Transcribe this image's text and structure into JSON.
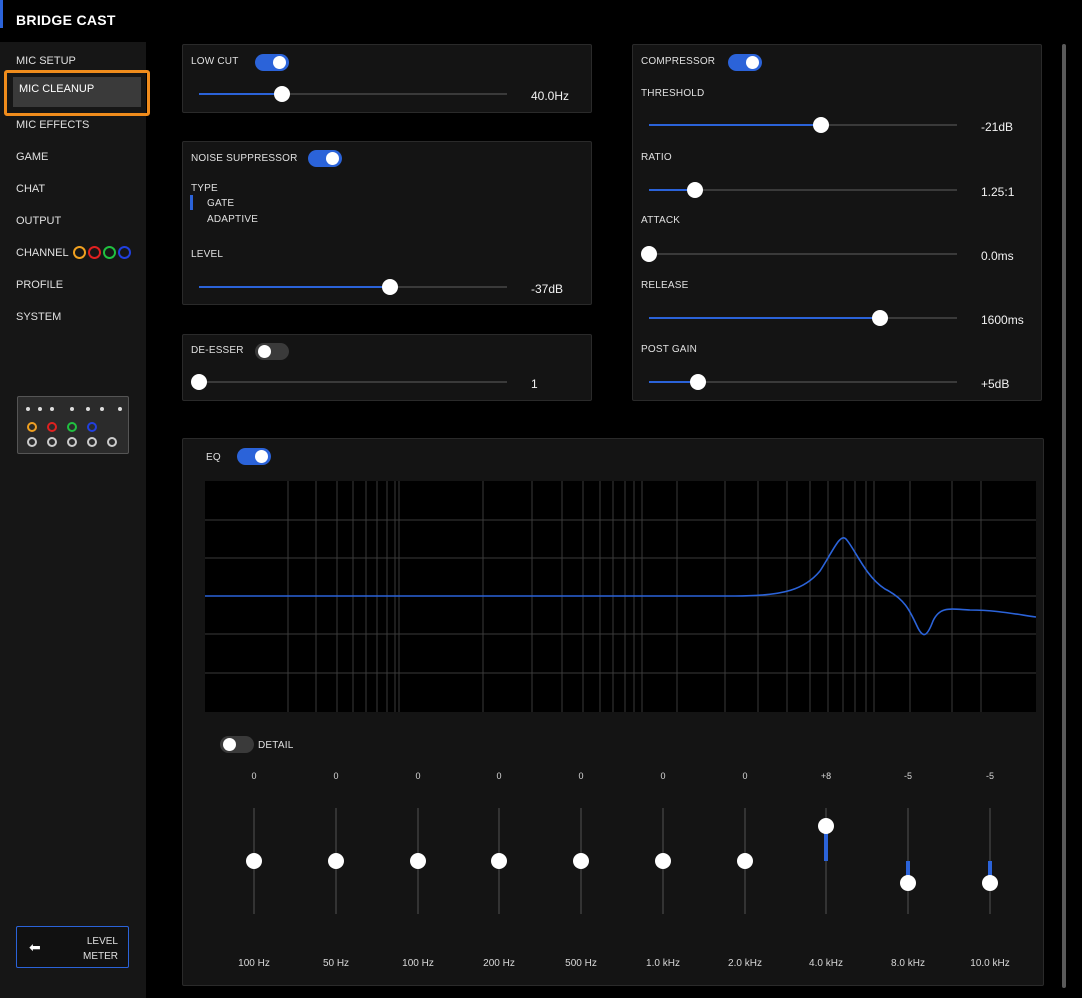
{
  "app": {
    "title": "BRIDGE CAST"
  },
  "sidebar": {
    "items": [
      {
        "id": "mic-setup",
        "label": "MIC SETUP"
      },
      {
        "id": "mic-cleanup",
        "label": "MIC CLEANUP",
        "active": true
      },
      {
        "id": "mic-effects",
        "label": "MIC EFFECTS"
      },
      {
        "id": "game",
        "label": "GAME"
      },
      {
        "id": "chat",
        "label": "CHAT"
      },
      {
        "id": "output",
        "label": "OUTPUT"
      },
      {
        "id": "channel",
        "label": "CHANNEL"
      },
      {
        "id": "profile",
        "label": "PROFILE"
      },
      {
        "id": "system",
        "label": "SYSTEM"
      }
    ],
    "channel_colors": [
      "#f0a020",
      "#e02020",
      "#20c040",
      "#2040e0"
    ],
    "level_meter": {
      "line1": "LEVEL",
      "line2": "METER",
      "icon": "arrow-left-icon"
    }
  },
  "low_cut": {
    "label": "LOW CUT",
    "enabled": true,
    "value": "40.0Hz",
    "level": 0.27
  },
  "noise_suppressor": {
    "label": "NOISE SUPPRESSOR",
    "enabled": true,
    "type_label": "TYPE",
    "types": [
      "GATE",
      "ADAPTIVE"
    ],
    "selected_type": "GATE",
    "level_label": "LEVEL",
    "level_value": "-37dB",
    "level": 0.62
  },
  "de_esser": {
    "label": "DE-ESSER",
    "enabled": false,
    "value": "1",
    "level": 0.0
  },
  "compressor": {
    "label": "COMPRESSOR",
    "enabled": true,
    "params": [
      {
        "label": "THRESHOLD",
        "value": "-21dB",
        "level": 0.56
      },
      {
        "label": "RATIO",
        "value": "1.25:1",
        "level": 0.15
      },
      {
        "label": "ATTACK",
        "value": "0.0ms",
        "level": 0.0
      },
      {
        "label": "RELEASE",
        "value": "1600ms",
        "level": 0.75
      },
      {
        "label": "POST GAIN",
        "value": "+5dB",
        "level": 0.16
      }
    ]
  },
  "eq": {
    "label": "EQ",
    "enabled": true,
    "detail_label": "DETAIL",
    "detail_enabled": false,
    "bands": [
      {
        "freq": "100 Hz",
        "gain": "0",
        "value": 0
      },
      {
        "freq": "50 Hz",
        "gain": "0",
        "value": 0
      },
      {
        "freq": "100 Hz",
        "gain": "0",
        "value": 0
      },
      {
        "freq": "200 Hz",
        "gain": "0",
        "value": 0
      },
      {
        "freq": "500 Hz",
        "gain": "0",
        "value": 0
      },
      {
        "freq": "1.0 kHz",
        "gain": "0",
        "value": 0
      },
      {
        "freq": "2.0 kHz",
        "gain": "0",
        "value": 0
      },
      {
        "freq": "4.0 kHz",
        "gain": "+8",
        "value": 8
      },
      {
        "freq": "8.0 kHz",
        "gain": "-5",
        "value": -5
      },
      {
        "freq": "10.0 kHz",
        "gain": "-5",
        "value": -5
      }
    ],
    "gain_range": [
      -12,
      12
    ],
    "curve_color": "#2b63d9"
  }
}
